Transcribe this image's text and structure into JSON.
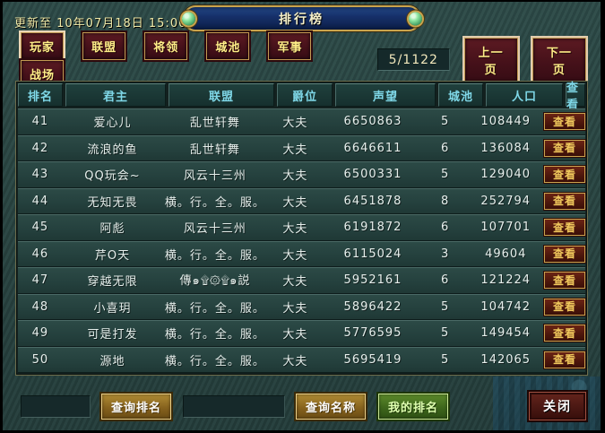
{
  "window": {
    "update_text": "更新至 10年07月18日 15:00",
    "title": "排行榜"
  },
  "tabs": [
    {
      "label": "玩家",
      "active": true
    },
    {
      "label": "联盟",
      "active": false
    },
    {
      "label": "将领",
      "active": false
    },
    {
      "label": "城池",
      "active": false
    },
    {
      "label": "军事",
      "active": false
    },
    {
      "label": "战场",
      "active": false
    }
  ],
  "pagination": {
    "page_indicator": "5/1122",
    "prev_label": "上一页",
    "next_label": "下一页"
  },
  "table": {
    "columns": [
      "排名",
      "君主",
      "联盟",
      "爵位",
      "声望",
      "城池",
      "人口",
      "查看"
    ],
    "view_label": "查看",
    "rows": [
      {
        "rank": "41",
        "monarch": "爱心儿",
        "alliance": "乱世轩舞",
        "title": "大夫",
        "reputation": "6650863",
        "cities": "5",
        "population": "108449"
      },
      {
        "rank": "42",
        "monarch": "流浪的鱼",
        "alliance": "乱世轩舞",
        "title": "大夫",
        "reputation": "6646611",
        "cities": "6",
        "population": "136084"
      },
      {
        "rank": "43",
        "monarch": "QQ玩会~",
        "alliance": "风云十三州",
        "title": "大夫",
        "reputation": "6500331",
        "cities": "5",
        "population": "129040"
      },
      {
        "rank": "44",
        "monarch": "无知无畏",
        "alliance": "横。行。全。服。",
        "title": "大夫",
        "reputation": "6451878",
        "cities": "8",
        "population": "252794"
      },
      {
        "rank": "45",
        "monarch": "阿彪",
        "alliance": "风云十三州",
        "title": "大夫",
        "reputation": "6191872",
        "cities": "6",
        "population": "107701"
      },
      {
        "rank": "46",
        "monarch": "芹O天",
        "alliance": "横。行。全。服。",
        "title": "大夫",
        "reputation": "6115024",
        "cities": "3",
        "population": "49604"
      },
      {
        "rank": "47",
        "monarch": "穿越无限",
        "alliance": "傳๑۩۞۩๑説",
        "title": "大夫",
        "reputation": "5952161",
        "cities": "6",
        "population": "121224"
      },
      {
        "rank": "48",
        "monarch": "小喜玥",
        "alliance": "横。行。全。服。",
        "title": "大夫",
        "reputation": "5896422",
        "cities": "5",
        "population": "104742"
      },
      {
        "rank": "49",
        "monarch": "可是打发",
        "alliance": "横。行。全。服。",
        "title": "大夫",
        "reputation": "5776595",
        "cities": "5",
        "population": "149454"
      },
      {
        "rank": "50",
        "monarch": "源地",
        "alliance": "横。行。全。服。",
        "title": "大夫",
        "reputation": "5695419",
        "cities": "5",
        "population": "142065"
      }
    ]
  },
  "footer": {
    "rank_input_value": "",
    "query_rank_label": "查询排名",
    "name_input_value": "",
    "query_name_label": "查询名称",
    "my_rank_label": "我的排名",
    "close_label": "关闭"
  },
  "colors": {
    "accent_gold": "#c9a44e",
    "button_maroon": "#46111a",
    "button_text_yellow": "#ffee88",
    "header_cyan": "#7fd8e8",
    "row_text": "#e6efec",
    "green_button": "#3e661c",
    "banner_blue": "#16306a",
    "background_teal": "#2a4643"
  }
}
